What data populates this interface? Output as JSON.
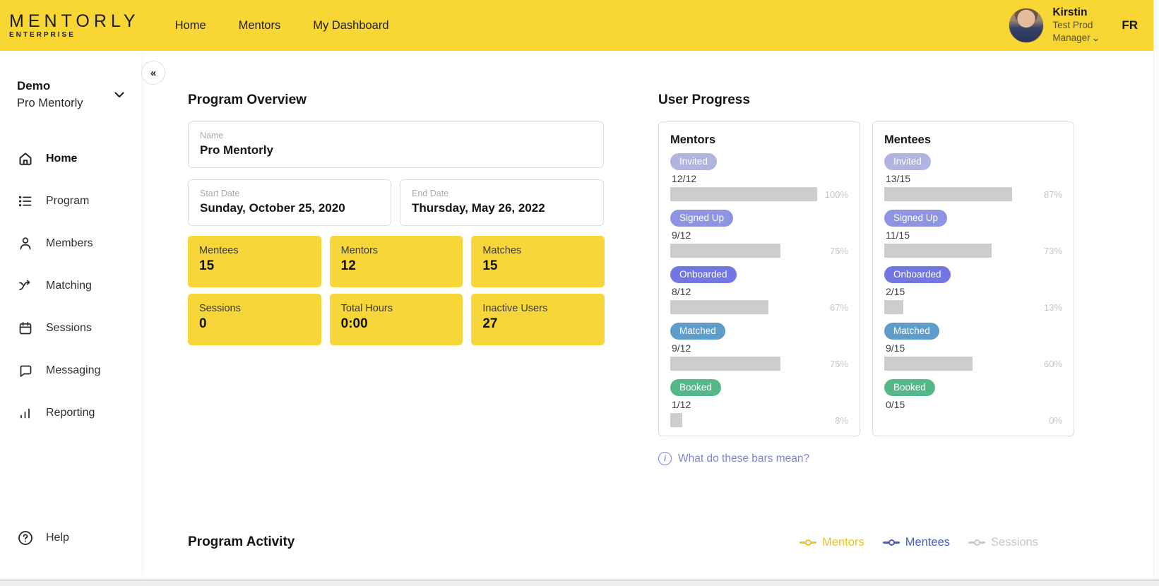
{
  "header": {
    "logo_title": "MENTORLY",
    "logo_subtitle": "ENTERPRISE",
    "nav": [
      {
        "label": "Home"
      },
      {
        "label": "Mentors"
      },
      {
        "label": "My Dashboard"
      }
    ],
    "user": {
      "name": "Kirstin",
      "role_line1": "Test Prod",
      "role_line2": "Manager"
    },
    "language": "FR"
  },
  "sidebar": {
    "collapse_icon": "chevron-double-left",
    "program_label": "Demo",
    "program_name": "Pro Mentorly",
    "items": [
      {
        "label": "Home",
        "icon": "home",
        "active": true
      },
      {
        "label": "Program",
        "icon": "program",
        "active": false
      },
      {
        "label": "Members",
        "icon": "members",
        "active": false
      },
      {
        "label": "Matching",
        "icon": "matching",
        "active": false
      },
      {
        "label": "Sessions",
        "icon": "sessions",
        "active": false
      },
      {
        "label": "Messaging",
        "icon": "messaging",
        "active": false
      },
      {
        "label": "Reporting",
        "icon": "reporting",
        "active": false
      }
    ],
    "help_label": "Help"
  },
  "overview": {
    "title": "Program Overview",
    "name_field": {
      "label": "Name",
      "value": "Pro Mentorly"
    },
    "start_date": {
      "label": "Start Date",
      "value": "Sunday, October 25, 2020"
    },
    "end_date": {
      "label": "End Date",
      "value": "Thursday, May 26, 2022"
    },
    "stats": [
      {
        "label": "Mentees",
        "value": "15"
      },
      {
        "label": "Mentors",
        "value": "12"
      },
      {
        "label": "Matches",
        "value": "15"
      },
      {
        "label": "Sessions",
        "value": "0"
      },
      {
        "label": "Total Hours",
        "value": "0:00"
      },
      {
        "label": "Inactive Users",
        "value": "27"
      }
    ]
  },
  "user_progress": {
    "title": "User Progress",
    "info_link": "What do these bars mean?",
    "bar_color": "#cdcdcd",
    "groups": [
      {
        "title": "Mentors",
        "rows": [
          {
            "stage": "Invited",
            "fraction": "12/12",
            "percent": "100%",
            "pct": 100,
            "color": "#AFB4E0"
          },
          {
            "stage": "Signed Up",
            "fraction": "9/12",
            "percent": "75%",
            "pct": 75,
            "color": "#8D95E3"
          },
          {
            "stage": "Onboarded",
            "fraction": "8/12",
            "percent": "67%",
            "pct": 67,
            "color": "#7276E2"
          },
          {
            "stage": "Matched",
            "fraction": "9/12",
            "percent": "75%",
            "pct": 75,
            "color": "#5E9DC9"
          },
          {
            "stage": "Booked",
            "fraction": "1/12",
            "percent": "8%",
            "pct": 8,
            "color": "#55B987"
          }
        ]
      },
      {
        "title": "Mentees",
        "rows": [
          {
            "stage": "Invited",
            "fraction": "13/15",
            "percent": "87%",
            "pct": 87,
            "color": "#AFB4E0"
          },
          {
            "stage": "Signed Up",
            "fraction": "11/15",
            "percent": "73%",
            "pct": 73,
            "color": "#8D95E3"
          },
          {
            "stage": "Onboarded",
            "fraction": "2/15",
            "percent": "13%",
            "pct": 13,
            "color": "#7276E2"
          },
          {
            "stage": "Matched",
            "fraction": "9/15",
            "percent": "60%",
            "pct": 60,
            "color": "#5E9DC9"
          },
          {
            "stage": "Booked",
            "fraction": "0/15",
            "percent": "0%",
            "pct": 0,
            "color": "#55B987"
          }
        ]
      }
    ]
  },
  "activity": {
    "title": "Program Activity",
    "legend": [
      {
        "label": "Mentors",
        "color": "#E7C52F"
      },
      {
        "label": "Mentees",
        "color": "#4A5BC4"
      },
      {
        "label": "Sessions",
        "color": "#C9C9C9"
      }
    ]
  }
}
